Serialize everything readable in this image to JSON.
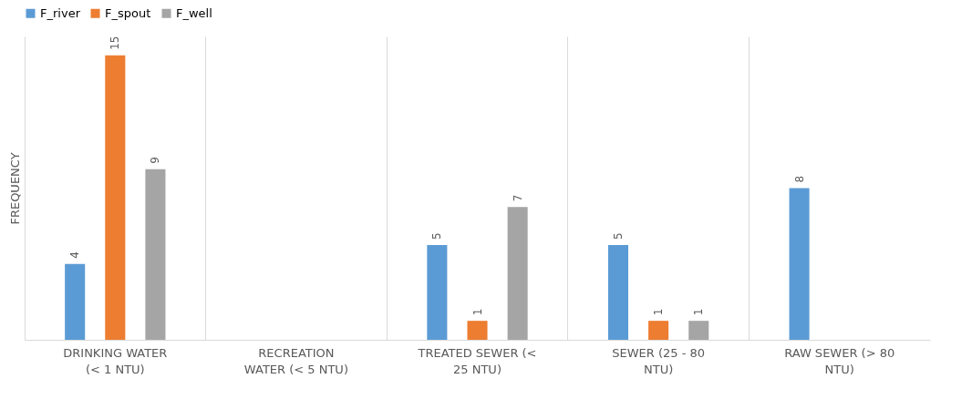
{
  "chart_data": {
    "type": "bar",
    "ylabel": "FREQUENCY",
    "categories": [
      "DRINKING WATER\n(< 1 NTU)",
      "RECREATION\nWATER (< 5 NTU)",
      "TREATED SEWER (<\n25 NTU)",
      "SEWER (25 - 80\nNTU)",
      "RAW SEWER (> 80\nNTU)"
    ],
    "series": [
      {
        "name": "F_river",
        "color": "#5b9bd5",
        "values": [
          4,
          null,
          5,
          5,
          8
        ]
      },
      {
        "name": "F_spout",
        "color": "#ed7d31",
        "values": [
          15,
          null,
          1,
          1,
          null
        ]
      },
      {
        "name": "F_well",
        "color": "#a5a5a5",
        "values": [
          9,
          null,
          7,
          1,
          null
        ]
      }
    ],
    "ylim": [
      0,
      16
    ],
    "tick_labels": "x",
    "grid": "x",
    "legend": "top",
    "data_labels": true
  }
}
